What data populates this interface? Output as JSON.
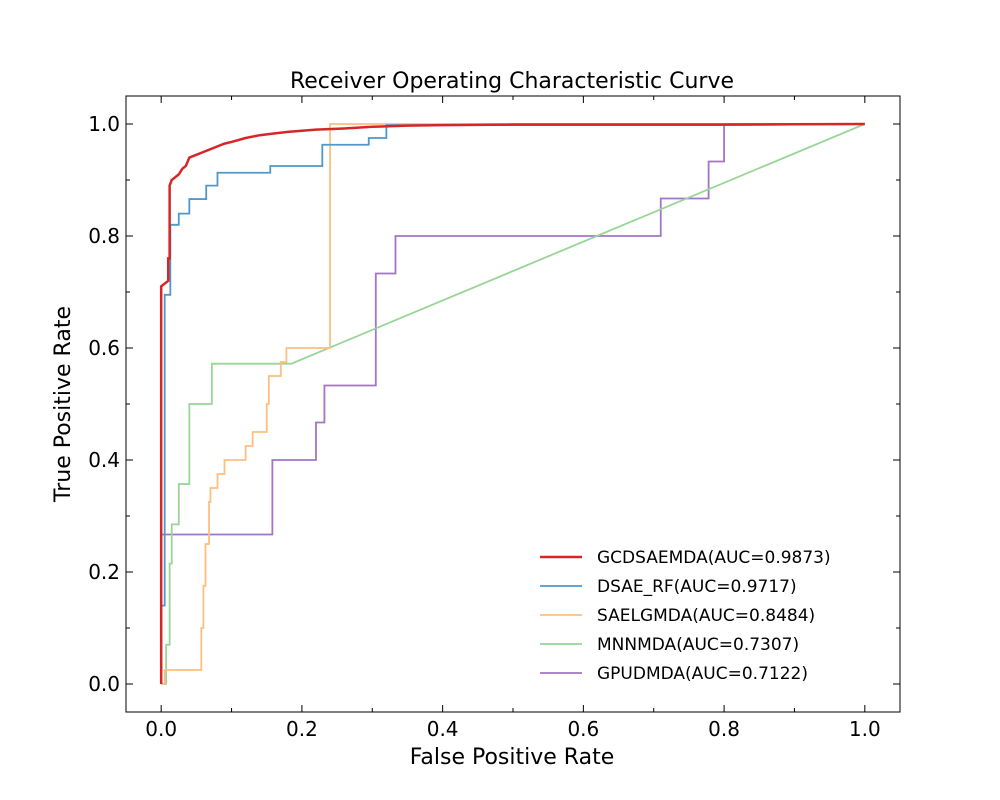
{
  "chart_data": {
    "type": "line",
    "title": "Receiver Operating Characteristic Curve",
    "xlabel": "False Positive Rate",
    "ylabel": "True Positive Rate",
    "xlim": [
      -0.05,
      1.05
    ],
    "ylim": [
      -0.05,
      1.05
    ],
    "xticks": [
      "0.0",
      "0.2",
      "0.4",
      "0.6",
      "0.8",
      "1.0"
    ],
    "yticks": [
      "0.0",
      "0.2",
      "0.4",
      "0.6",
      "0.8",
      "1.0"
    ],
    "grid": false,
    "legend_position": "lower-right",
    "series": [
      {
        "name": "GCDSAEMDA(AUC=0.9873)",
        "color": "#d62728",
        "points": [
          [
            0.0,
            0.0
          ],
          [
            0.0,
            0.71
          ],
          [
            0.01,
            0.72
          ],
          [
            0.01,
            0.76
          ],
          [
            0.012,
            0.76
          ],
          [
            0.012,
            0.89
          ],
          [
            0.015,
            0.9
          ],
          [
            0.025,
            0.91
          ],
          [
            0.03,
            0.92
          ],
          [
            0.035,
            0.925
          ],
          [
            0.04,
            0.94
          ],
          [
            0.05,
            0.945
          ],
          [
            0.06,
            0.95
          ],
          [
            0.07,
            0.955
          ],
          [
            0.08,
            0.96
          ],
          [
            0.09,
            0.965
          ],
          [
            0.1,
            0.968
          ],
          [
            0.12,
            0.975
          ],
          [
            0.14,
            0.98
          ],
          [
            0.16,
            0.983
          ],
          [
            0.18,
            0.986
          ],
          [
            0.22,
            0.99
          ],
          [
            0.26,
            0.992
          ],
          [
            0.3,
            0.995
          ],
          [
            0.35,
            0.997
          ],
          [
            0.4,
            0.998
          ],
          [
            0.5,
            0.999
          ],
          [
            0.6,
            0.999
          ],
          [
            0.8,
            0.999
          ],
          [
            1.0,
            1.0
          ]
        ]
      },
      {
        "name": "DSAE_RF(AUC=0.9717)",
        "color": "#4f98ca",
        "points": [
          [
            0.0,
            0.0
          ],
          [
            0.0,
            0.14
          ],
          [
            0.005,
            0.14
          ],
          [
            0.005,
            0.695
          ],
          [
            0.013,
            0.695
          ],
          [
            0.013,
            0.82
          ],
          [
            0.025,
            0.82
          ],
          [
            0.025,
            0.84
          ],
          [
            0.04,
            0.84
          ],
          [
            0.04,
            0.866
          ],
          [
            0.064,
            0.866
          ],
          [
            0.064,
            0.89
          ],
          [
            0.08,
            0.89
          ],
          [
            0.08,
            0.913
          ],
          [
            0.155,
            0.913
          ],
          [
            0.155,
            0.925
          ],
          [
            0.229,
            0.925
          ],
          [
            0.229,
            0.963
          ],
          [
            0.295,
            0.963
          ],
          [
            0.295,
            0.975
          ],
          [
            0.32,
            0.975
          ],
          [
            0.32,
            0.998
          ],
          [
            0.5,
            0.998
          ],
          [
            0.8,
            0.998
          ],
          [
            1.0,
            1.0
          ]
        ]
      },
      {
        "name": "SAELGMDA(AUC=0.8484)",
        "color": "#fdbf80",
        "points": [
          [
            0.0,
            0.0
          ],
          [
            0.005,
            0.0
          ],
          [
            0.005,
            0.025
          ],
          [
            0.057,
            0.025
          ],
          [
            0.057,
            0.1
          ],
          [
            0.06,
            0.1
          ],
          [
            0.06,
            0.175
          ],
          [
            0.063,
            0.175
          ],
          [
            0.063,
            0.25
          ],
          [
            0.068,
            0.25
          ],
          [
            0.068,
            0.325
          ],
          [
            0.07,
            0.325
          ],
          [
            0.07,
            0.35
          ],
          [
            0.08,
            0.35
          ],
          [
            0.08,
            0.375
          ],
          [
            0.09,
            0.375
          ],
          [
            0.09,
            0.4
          ],
          [
            0.12,
            0.4
          ],
          [
            0.12,
            0.425
          ],
          [
            0.13,
            0.425
          ],
          [
            0.13,
            0.45
          ],
          [
            0.15,
            0.45
          ],
          [
            0.15,
            0.5
          ],
          [
            0.153,
            0.5
          ],
          [
            0.153,
            0.55
          ],
          [
            0.17,
            0.55
          ],
          [
            0.17,
            0.575
          ],
          [
            0.178,
            0.575
          ],
          [
            0.178,
            0.6
          ],
          [
            0.24,
            0.6
          ],
          [
            0.24,
            1.0
          ],
          [
            0.5,
            1.0
          ],
          [
            0.8,
            1.0
          ],
          [
            1.0,
            1.0
          ]
        ]
      },
      {
        "name": "MNNMDA(AUC=0.7307)",
        "color": "#98d597",
        "points": [
          [
            0.0,
            0.0
          ],
          [
            0.007,
            0.0
          ],
          [
            0.007,
            0.07
          ],
          [
            0.012,
            0.07
          ],
          [
            0.012,
            0.215
          ],
          [
            0.015,
            0.215
          ],
          [
            0.015,
            0.285
          ],
          [
            0.025,
            0.285
          ],
          [
            0.025,
            0.357
          ],
          [
            0.04,
            0.357
          ],
          [
            0.04,
            0.5
          ],
          [
            0.072,
            0.5
          ],
          [
            0.072,
            0.572
          ],
          [
            0.185,
            0.572
          ],
          [
            1.0,
            1.0
          ]
        ]
      },
      {
        "name": "GPUDMDA(AUC=0.7122)",
        "color": "#a374c7",
        "points": [
          [
            0.0,
            0.0
          ],
          [
            0.0,
            0.267
          ],
          [
            0.158,
            0.267
          ],
          [
            0.158,
            0.4
          ],
          [
            0.22,
            0.4
          ],
          [
            0.22,
            0.467
          ],
          [
            0.232,
            0.467
          ],
          [
            0.232,
            0.533
          ],
          [
            0.305,
            0.533
          ],
          [
            0.305,
            0.733
          ],
          [
            0.333,
            0.733
          ],
          [
            0.333,
            0.8
          ],
          [
            0.71,
            0.8
          ],
          [
            0.71,
            0.867
          ],
          [
            0.778,
            0.867
          ],
          [
            0.778,
            0.933
          ],
          [
            0.8,
            0.933
          ],
          [
            0.8,
            1.0
          ],
          [
            1.0,
            1.0
          ]
        ]
      }
    ]
  }
}
